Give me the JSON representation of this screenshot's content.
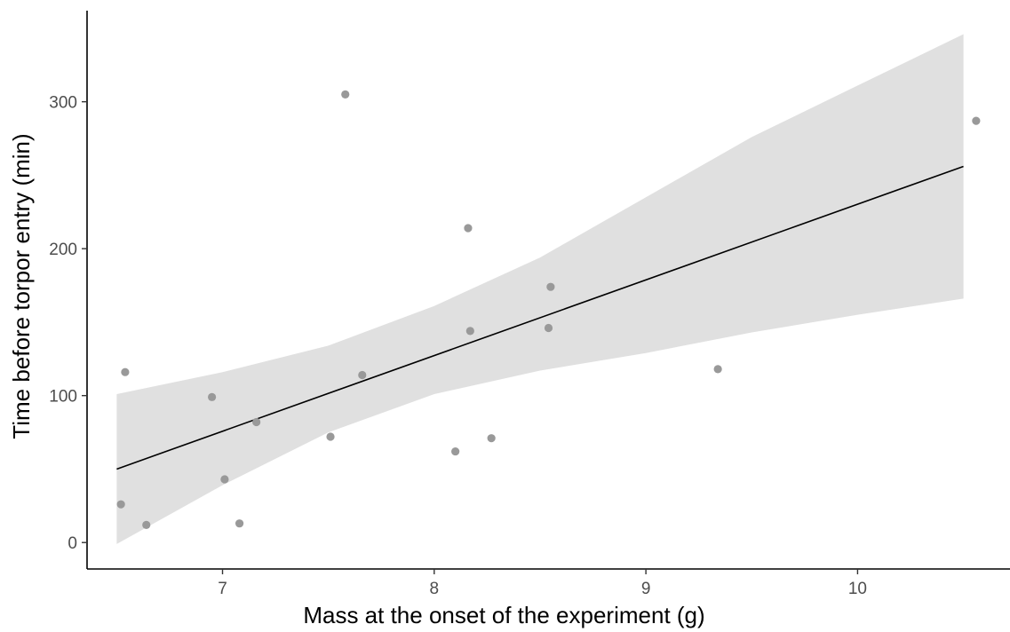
{
  "chart_data": {
    "type": "scatter",
    "title": "",
    "xlabel": "Mass at the onset of the experiment (g)",
    "ylabel": "Time before torpor entry (min)",
    "xlim": [
      6.36,
      10.72
    ],
    "ylim": [
      -18,
      362
    ],
    "xticks": [
      {
        "value": 7,
        "label": "7"
      },
      {
        "value": 8,
        "label": "8"
      },
      {
        "value": 9,
        "label": "9"
      },
      {
        "value": 10,
        "label": "10"
      }
    ],
    "yticks": [
      {
        "value": 0,
        "label": "0"
      },
      {
        "value": 100,
        "label": "100"
      },
      {
        "value": 200,
        "label": "200"
      },
      {
        "value": 300,
        "label": "300"
      }
    ],
    "grid": false,
    "points": {
      "color": "#999999",
      "x": [
        6.52,
        6.54,
        6.64,
        6.95,
        7.01,
        7.08,
        7.16,
        7.51,
        7.58,
        7.66,
        8.1,
        8.16,
        8.17,
        8.27,
        8.54,
        8.55,
        9.34,
        10.56
      ],
      "y": [
        26,
        116,
        12,
        99,
        43,
        13,
        82,
        72,
        305,
        114,
        62,
        214,
        144,
        71,
        146,
        174,
        118,
        287
      ]
    },
    "fit_line": {
      "color": "#000000",
      "x": [
        6.5,
        10.5
      ],
      "y": [
        50,
        256
      ]
    },
    "confidence_band": {
      "color": "#e0e0e0",
      "x": [
        6.5,
        7.0,
        7.5,
        8.0,
        8.5,
        9.0,
        9.5,
        10.0,
        10.5
      ],
      "lower": [
        -1,
        39,
        75,
        101,
        117,
        129,
        143,
        155,
        166
      ],
      "upper": [
        101,
        116,
        134,
        161,
        194,
        235,
        276,
        311,
        346
      ]
    }
  }
}
